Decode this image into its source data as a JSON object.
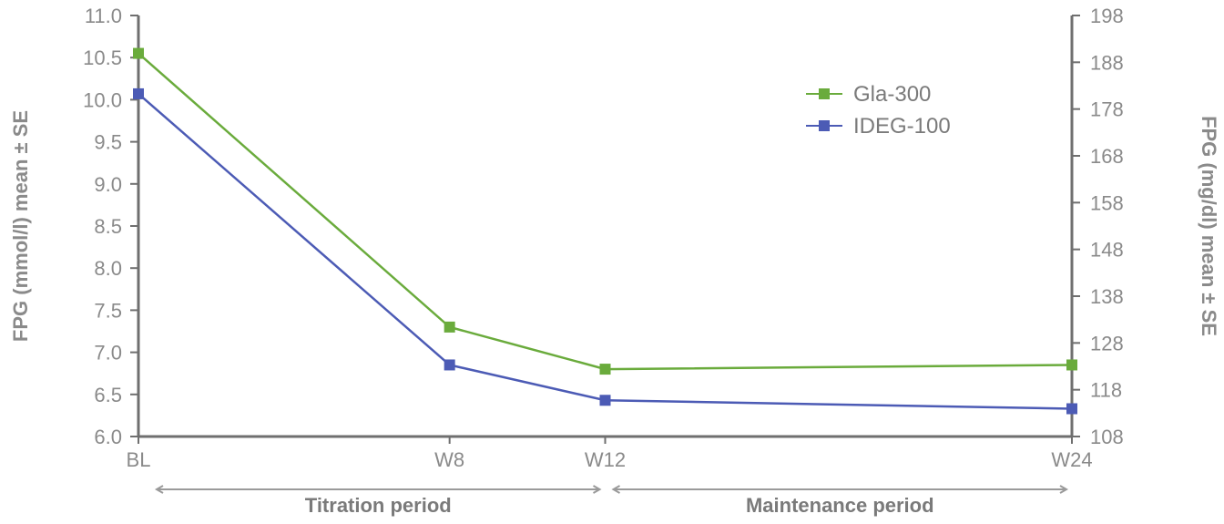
{
  "chart_data": {
    "type": "line",
    "categories": [
      "BL",
      "W8",
      "W12",
      "W24"
    ],
    "x": [
      0,
      8,
      12,
      24
    ],
    "ylabel": "FPG (mmol/l) mean ± SE",
    "ylim": [
      6.0,
      11.0
    ],
    "yticks": [
      "6.0",
      "6.5",
      "7.0",
      "7.5",
      "8.0",
      "8.5",
      "9.0",
      "9.5",
      "10.0",
      "10.5",
      "11.0"
    ],
    "y2label": "FPG (mg/dl) mean ± SE",
    "y2lim": [
      108,
      198
    ],
    "y2ticks": [
      "108",
      "118",
      "128",
      "138",
      "148",
      "158",
      "168",
      "178",
      "188",
      "198"
    ],
    "series": [
      {
        "name": "Gla-300",
        "color": "#6aab3c",
        "values": [
          10.55,
          7.3,
          6.8,
          6.85
        ]
      },
      {
        "name": "IDEG-100",
        "color": "#4c5bb5",
        "values": [
          10.07,
          6.85,
          6.43,
          6.33
        ]
      }
    ],
    "periods": [
      {
        "label": "Titration period",
        "from": 0,
        "to": 12
      },
      {
        "label": "Maintenance period",
        "from": 12,
        "to": 24
      }
    ],
    "legend": "top-right",
    "grid": false
  }
}
